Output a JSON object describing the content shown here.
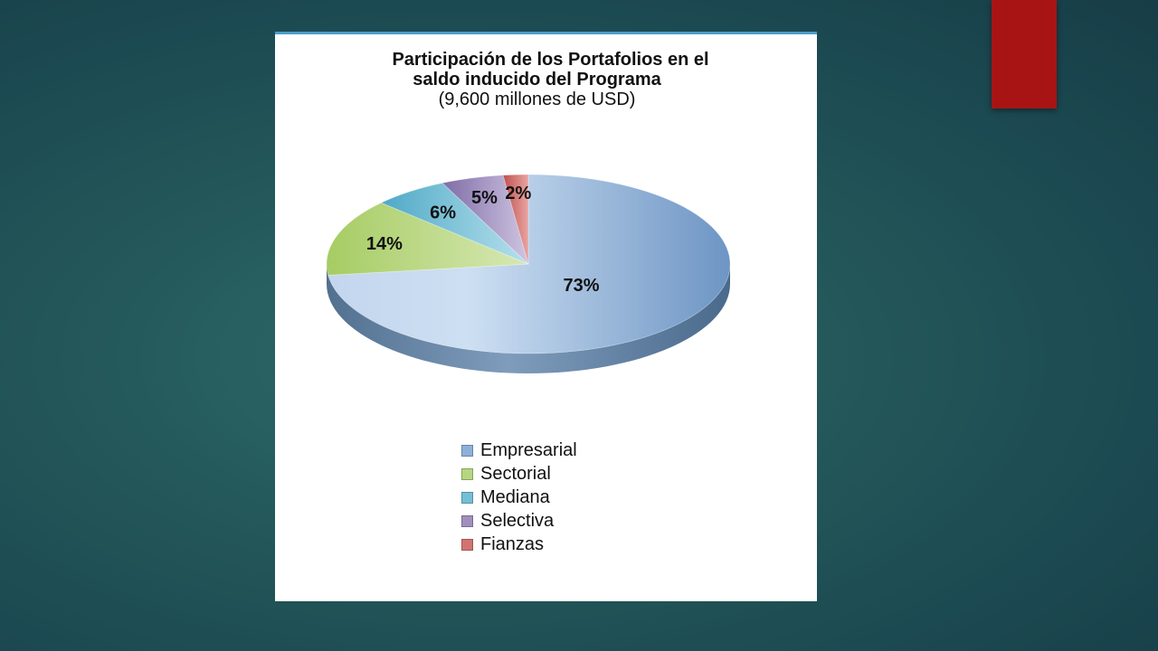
{
  "chart_data": {
    "type": "pie",
    "title_lines": [
      "Participación de los Portafolios en el",
      "saldo inducido del Programa",
      "(9,600 millones de USD)"
    ],
    "categories": [
      "Empresarial",
      "Sectorial",
      "Mediana",
      "Selectiva",
      "Fianzas"
    ],
    "values": [
      73,
      14,
      6,
      5,
      2
    ],
    "labels": [
      "73%",
      "14%",
      "6%",
      "5%",
      "2%"
    ],
    "colors": [
      "#8db0d9",
      "#b6d77f",
      "#74bfd6",
      "#a08fbd",
      "#d27470"
    ],
    "side_colors": [
      "#5f7f9e",
      "#7a9a4e",
      "#4f8fa3",
      "#6f6090",
      "#9a4d4a"
    ],
    "legend_position": "bottom",
    "style": "3d"
  }
}
